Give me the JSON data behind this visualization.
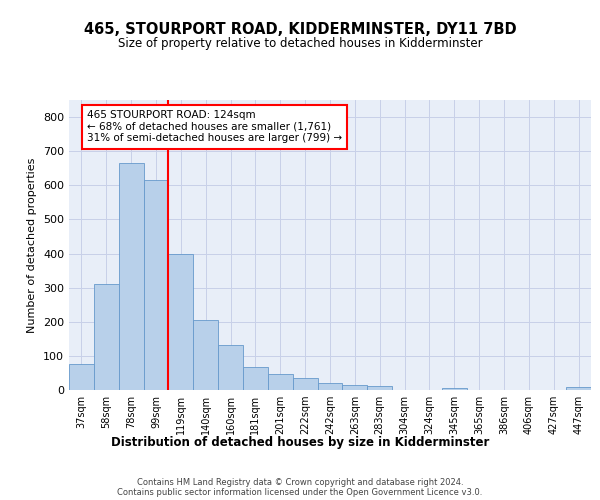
{
  "title": "465, STOURPORT ROAD, KIDDERMINSTER, DY11 7BD",
  "subtitle": "Size of property relative to detached houses in Kidderminster",
  "xlabel": "Distribution of detached houses by size in Kidderminster",
  "ylabel": "Number of detached properties",
  "categories": [
    "37sqm",
    "58sqm",
    "78sqm",
    "99sqm",
    "119sqm",
    "140sqm",
    "160sqm",
    "181sqm",
    "201sqm",
    "222sqm",
    "242sqm",
    "263sqm",
    "283sqm",
    "304sqm",
    "324sqm",
    "345sqm",
    "365sqm",
    "386sqm",
    "406sqm",
    "427sqm",
    "447sqm"
  ],
  "values": [
    75,
    312,
    665,
    615,
    398,
    205,
    133,
    68,
    47,
    35,
    20,
    16,
    12,
    0,
    0,
    7,
    0,
    0,
    0,
    0,
    8
  ],
  "bar_color": "#b8d0ea",
  "bar_edge_color": "#6699cc",
  "grid_color": "#c8d0e8",
  "background_color": "#e8eef8",
  "vline_color": "red",
  "annotation_text": "465 STOURPORT ROAD: 124sqm\n← 68% of detached houses are smaller (1,761)\n31% of semi-detached houses are larger (799) →",
  "annotation_box_color": "white",
  "annotation_box_edge": "red",
  "footer": "Contains HM Land Registry data © Crown copyright and database right 2024.\nContains public sector information licensed under the Open Government Licence v3.0.",
  "ylim": [
    0,
    850
  ],
  "yticks": [
    0,
    100,
    200,
    300,
    400,
    500,
    600,
    700,
    800
  ]
}
